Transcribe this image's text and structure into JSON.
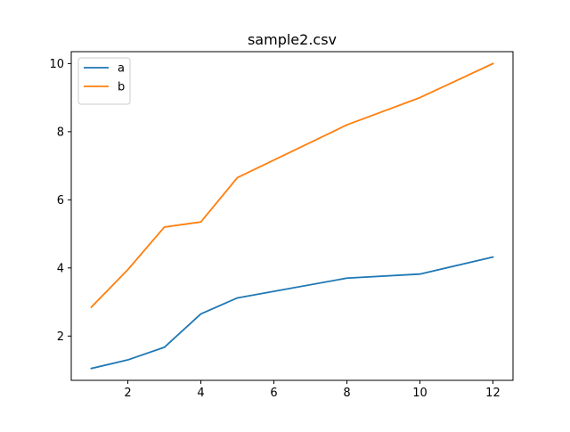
{
  "chart_data": {
    "type": "line",
    "title": "sample2.csv",
    "xlabel": "",
    "ylabel": "",
    "xlim": [
      0.45,
      12.55
    ],
    "ylim": [
      0.7,
      10.35
    ],
    "xticks": [
      2,
      4,
      6,
      8,
      10,
      12
    ],
    "yticks": [
      2,
      4,
      6,
      8,
      10
    ],
    "grid": false,
    "legend_position": "upper-left",
    "series": [
      {
        "name": "a",
        "color": "#1f77b4",
        "x": [
          1,
          2,
          3,
          4,
          5,
          8,
          10,
          12
        ],
        "y": [
          1.05,
          1.3,
          1.67,
          2.65,
          3.12,
          3.7,
          3.82,
          4.32
        ]
      },
      {
        "name": "b",
        "color": "#ff7f0e",
        "x": [
          1,
          2,
          3,
          4,
          5,
          8,
          10,
          12
        ],
        "y": [
          2.85,
          3.95,
          5.2,
          5.35,
          6.65,
          8.2,
          9.0,
          10.0
        ]
      }
    ]
  }
}
